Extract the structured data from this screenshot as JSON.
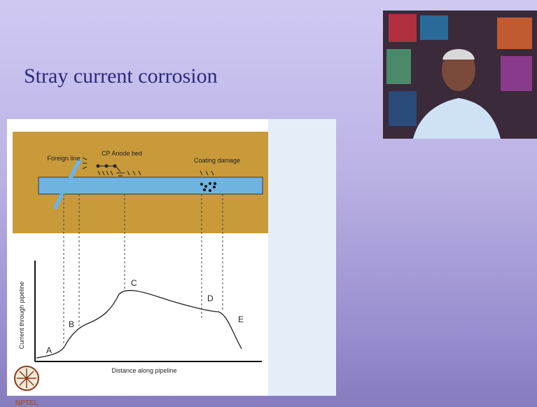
{
  "slide": {
    "title": "Stray current corrosion",
    "diagram": {
      "foreign_line": "Foreign line",
      "anode_bed": "CP Anode bed",
      "coating_damage": "Coating damage",
      "points": [
        "A",
        "B",
        "C",
        "D",
        "E"
      ],
      "y_axis_label": "Current through pipeline",
      "x_axis_label": "Distance along pipeline"
    },
    "logo": "NPTEL"
  }
}
